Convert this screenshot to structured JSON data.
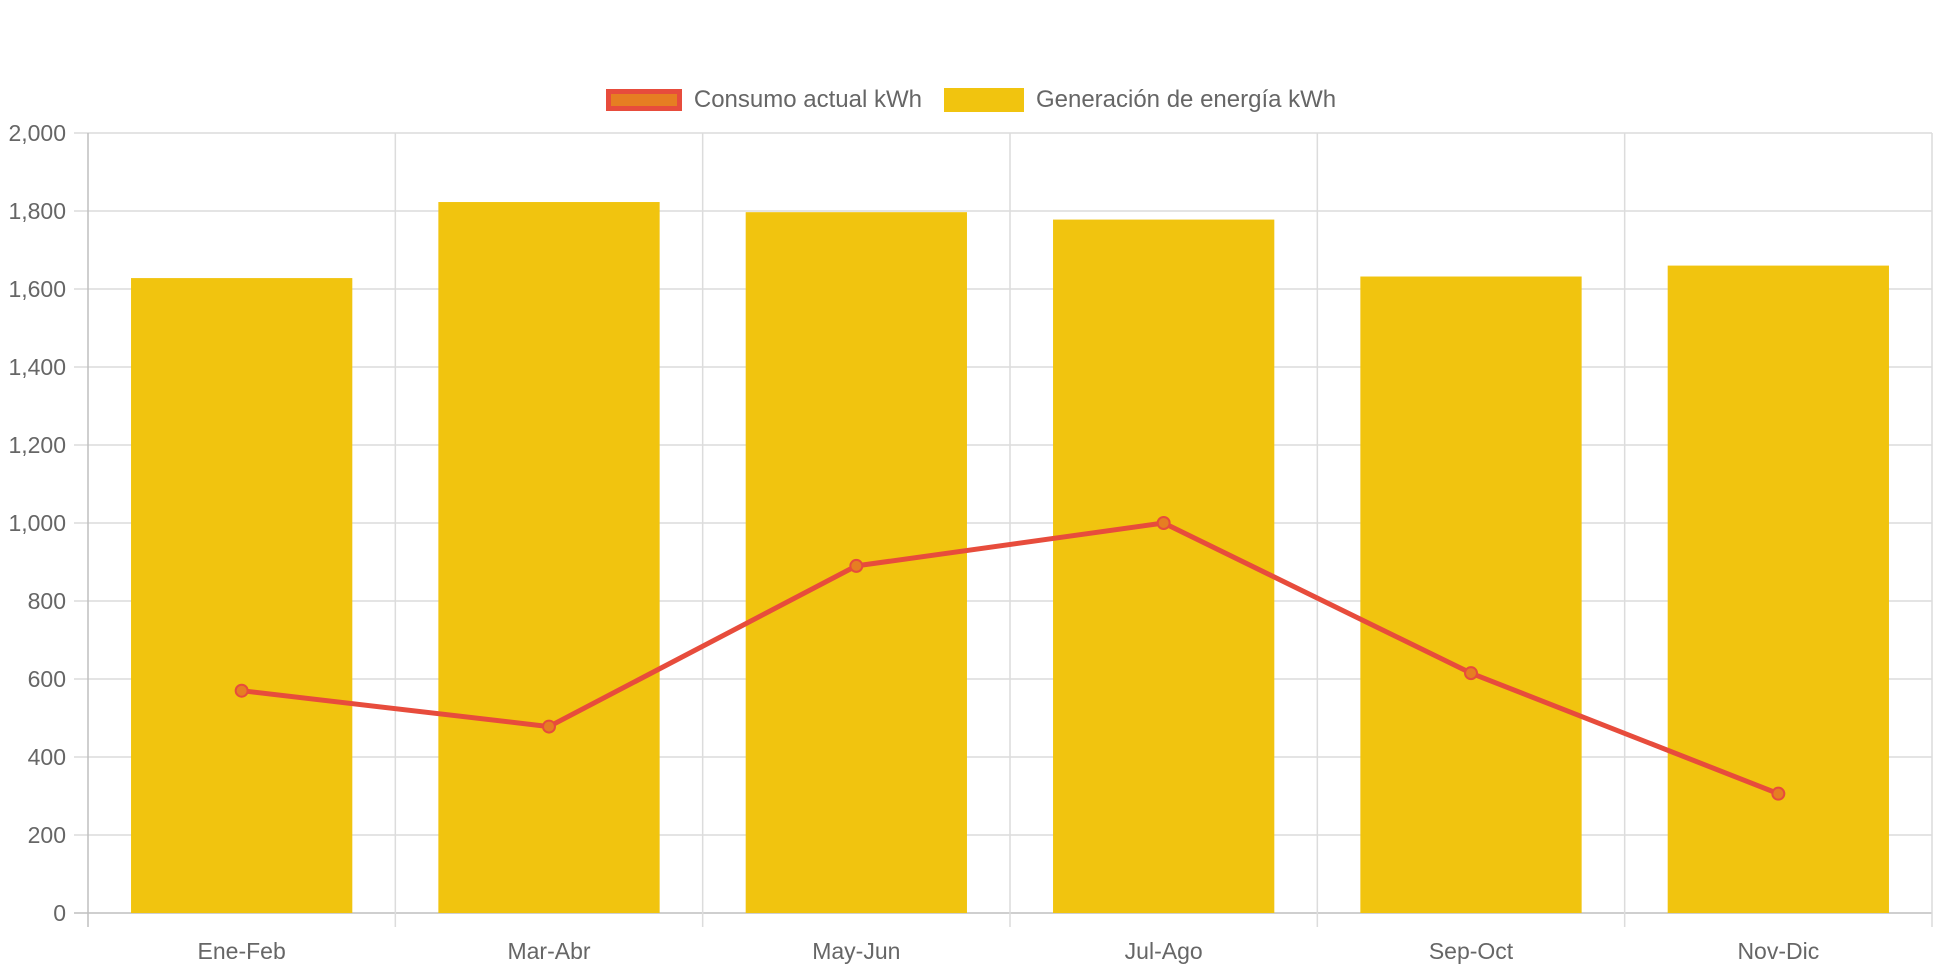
{
  "chart_data": {
    "type": "bar",
    "categories": [
      "Ene-Feb",
      "Mar-Abr",
      "May-Jun",
      "Jul-Ago",
      "Sep-Oct",
      "Nov-Dic"
    ],
    "series": [
      {
        "name": "Consumo actual kWh",
        "type": "line",
        "values": [
          570,
          478,
          890,
          1000,
          615,
          306
        ],
        "color": "#e74c3c",
        "point_fill": "#e67e22"
      },
      {
        "name": "Generación de energía kWh",
        "type": "bar",
        "values": [
          1628,
          1823,
          1797,
          1778,
          1632,
          1660
        ],
        "color": "#f1c40f"
      }
    ],
    "ylim": [
      0,
      2000
    ],
    "yticks": [
      "0",
      "200",
      "400",
      "600",
      "800",
      "1,000",
      "1,200",
      "1,400",
      "1,600",
      "1,800",
      "2,000"
    ],
    "ytick_values": [
      0,
      200,
      400,
      600,
      800,
      1000,
      1200,
      1400,
      1600,
      1800,
      2000
    ],
    "grid": true,
    "legend_position": "top-center"
  }
}
